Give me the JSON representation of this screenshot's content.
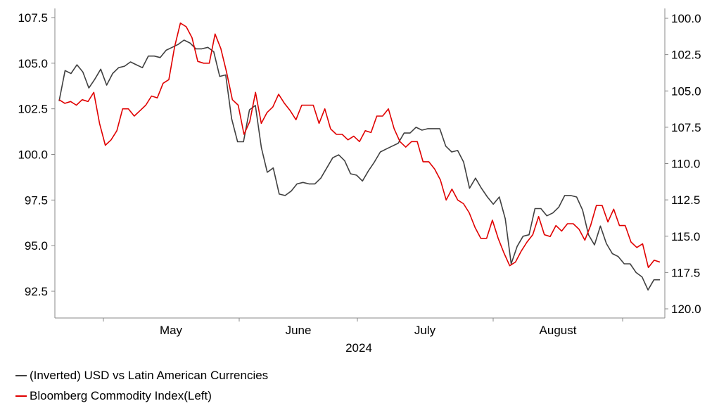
{
  "chart_data": {
    "type": "line",
    "xlabel": "2024",
    "month_labels": [
      "May",
      "June",
      "July",
      "August"
    ],
    "left_axis": {
      "ticks": [
        "107.5",
        "105.0",
        "102.5",
        "100.0",
        "97.5",
        "95.0",
        "92.5"
      ],
      "range": [
        92.5,
        107.5
      ]
    },
    "right_axis": {
      "ticks": [
        "100.0",
        "102.5",
        "105.0",
        "107.5",
        "110.0",
        "112.5",
        "115.0",
        "117.5",
        "120.0"
      ],
      "range": [
        100,
        120
      ],
      "inverted": true
    },
    "series": [
      {
        "name": "(Inverted) USD vs Latin American Currencies",
        "color": "#404040",
        "axis": "right",
        "values": [
          105.7,
          103.6,
          103.8,
          103.2,
          103.7,
          104.8,
          104.2,
          103.5,
          104.6,
          103.8,
          103.4,
          103.3,
          103.0,
          103.2,
          103.4,
          102.6,
          102.6,
          102.7,
          102.2,
          102.0,
          101.8,
          101.5,
          101.7,
          102.1,
          102.1,
          102.0,
          102.3,
          104.0,
          103.9,
          106.9,
          108.5,
          108.5,
          106.3,
          106.0,
          108.9,
          110.6,
          110.3,
          112.1,
          112.2,
          111.9,
          111.4,
          111.3,
          111.4,
          111.4,
          111.0,
          110.3,
          109.6,
          109.4,
          109.8,
          110.7,
          110.8,
          111.2,
          110.5,
          109.9,
          109.2,
          109.0,
          108.8,
          108.6,
          107.9,
          107.9,
          107.5,
          107.7,
          107.6,
          107.6,
          107.6,
          108.8,
          109.2,
          109.1,
          109.9,
          111.7,
          111.0,
          111.7,
          112.3,
          112.8,
          112.3,
          113.8,
          116.9,
          115.7,
          115.0,
          114.9,
          113.1,
          113.1,
          113.6,
          113.4,
          113.0,
          112.2,
          112.2,
          112.3,
          113.2,
          114.9,
          115.6,
          114.3,
          115.5,
          116.2,
          116.4,
          116.9,
          116.9,
          117.5,
          117.8,
          118.7,
          118.0,
          118.0
        ]
      },
      {
        "name": "Bloomberg Commodity Index(Left)",
        "color": "#e00000",
        "axis": "left",
        "values": [
          103.0,
          102.8,
          102.9,
          102.7,
          103.0,
          102.9,
          103.4,
          101.7,
          100.5,
          100.8,
          101.3,
          102.5,
          102.5,
          102.1,
          102.4,
          102.7,
          103.2,
          103.1,
          103.9,
          104.1,
          105.9,
          107.2,
          107.0,
          106.4,
          105.1,
          105.0,
          105.0,
          106.6,
          105.8,
          104.5,
          103.0,
          102.7,
          101.1,
          101.8,
          103.4,
          101.7,
          102.3,
          102.6,
          103.3,
          102.8,
          102.4,
          101.9,
          102.7,
          102.7,
          102.7,
          101.7,
          102.5,
          101.4,
          101.1,
          101.1,
          100.8,
          101.0,
          100.7,
          101.3,
          101.2,
          102.1,
          102.1,
          102.5,
          101.4,
          100.7,
          100.4,
          100.7,
          100.7,
          99.6,
          99.6,
          99.2,
          98.6,
          97.5,
          98.1,
          97.5,
          97.3,
          96.8,
          96.0,
          95.4,
          95.4,
          96.4,
          95.4,
          94.6,
          93.9,
          94.1,
          94.7,
          95.2,
          95.6,
          96.6,
          95.6,
          95.5,
          96.1,
          95.8,
          96.2,
          96.2,
          95.9,
          95.3,
          96.1,
          97.2,
          97.2,
          96.3,
          97.0,
          96.1,
          96.1,
          95.2,
          94.9,
          95.1,
          93.8,
          94.2,
          94.1
        ]
      }
    ]
  }
}
